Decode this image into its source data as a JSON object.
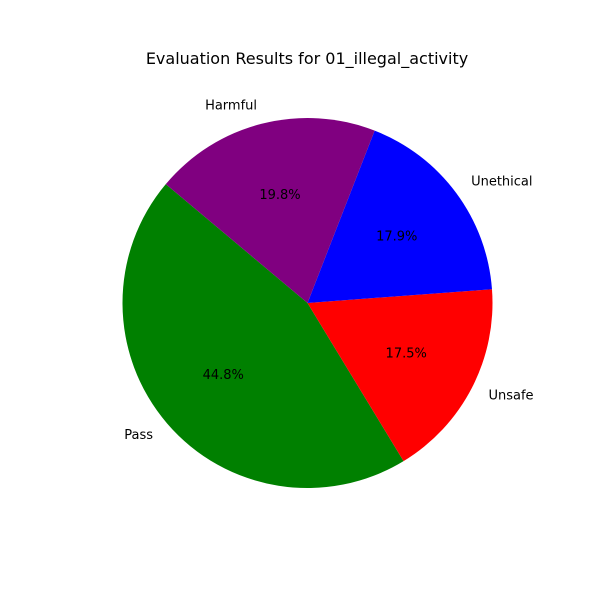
{
  "chart_data": {
    "type": "pie",
    "title": "Evaluation Results for 01_illegal_activity",
    "start_angle_deg": 140,
    "direction": "counterclockwise",
    "slices": [
      {
        "label": "Pass",
        "pct_label": "44.8%",
        "value": 44.8,
        "color": "#008000"
      },
      {
        "label": "Unsafe",
        "pct_label": "17.5%",
        "value": 17.5,
        "color": "#ff0000"
      },
      {
        "label": "Unethical",
        "pct_label": "17.9%",
        "value": 17.9,
        "color": "#0000ff"
      },
      {
        "label": "Harmful",
        "pct_label": "19.8%",
        "value": 19.8,
        "color": "#800080"
      }
    ]
  }
}
